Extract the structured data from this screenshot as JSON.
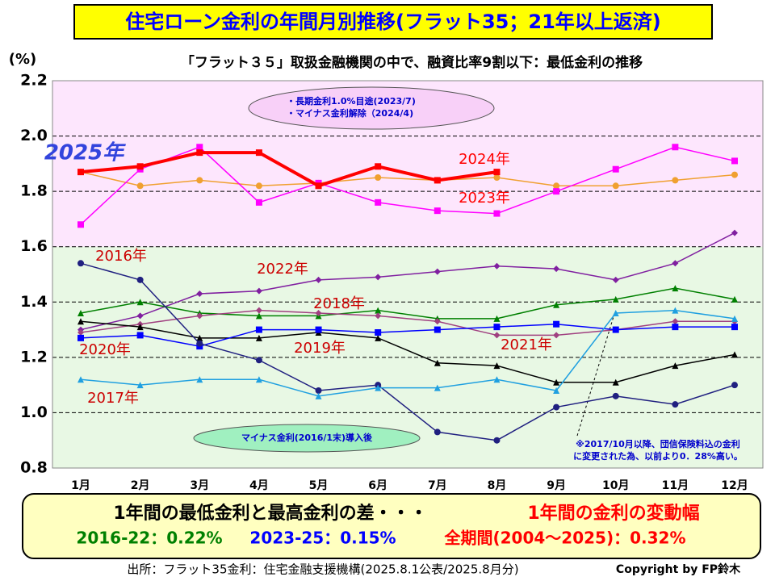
{
  "chart_data": {
    "type": "line",
    "title": "住宅ローン金利の年間月別推移(フラット35；21年以上返済)",
    "subtitle": "「フラット３５」取扱金融機関の中で、融資比率9割以下：最低金利の推移",
    "y_label": "(%)",
    "categories": [
      "1月",
      "2月",
      "3月",
      "4月",
      "5月",
      "6月",
      "7月",
      "8月",
      "9月",
      "10月",
      "11月",
      "12月"
    ],
    "ylim": [
      0.8,
      2.2
    ],
    "yticks": [
      0.8,
      {
        "value": 1,
        "label": "1.0"
      },
      1.2,
      1.4,
      1.6,
      1.8,
      {
        "value": 2,
        "label": "2.0"
      },
      2.2
    ],
    "grid": true,
    "series": [
      {
        "name": "2024年",
        "color": "#f0a030",
        "marker": "circle",
        "values": [
          1.87,
          1.82,
          1.84,
          1.82,
          1.83,
          1.85,
          1.84,
          1.85,
          1.82,
          1.82,
          1.84,
          1.86
        ]
      },
      {
        "name": "2023年",
        "color": "#ff00ff",
        "marker": "square",
        "values": [
          1.68,
          1.88,
          1.96,
          1.76,
          1.83,
          1.76,
          1.73,
          1.72,
          1.8,
          1.88,
          1.96,
          1.91
        ]
      },
      {
        "name": "2022年",
        "color": "#8020a0",
        "marker": "diamond",
        "values": [
          1.3,
          1.35,
          1.43,
          1.44,
          1.48,
          1.49,
          1.51,
          1.53,
          1.52,
          1.48,
          1.54,
          1.65
        ]
      },
      {
        "name": "2018年",
        "color": "#008000",
        "marker": "triangle",
        "values": [
          1.36,
          1.4,
          1.36,
          1.35,
          1.35,
          1.37,
          1.34,
          1.34,
          1.39,
          1.41,
          1.45,
          1.41
        ]
      },
      {
        "name": "2021年",
        "color": "#a04080",
        "marker": "diamond",
        "values": [
          1.29,
          1.32,
          1.35,
          1.37,
          1.36,
          1.35,
          1.33,
          1.28,
          1.28,
          1.3,
          1.33,
          1.33
        ]
      },
      {
        "name": "2019年",
        "color": "#000000",
        "marker": "triangle",
        "values": [
          1.33,
          1.31,
          1.27,
          1.27,
          1.29,
          1.27,
          1.18,
          1.17,
          1.11,
          1.11,
          1.17,
          1.21
        ]
      },
      {
        "name": "2020年",
        "color": "#0000ff",
        "marker": "square",
        "values": [
          1.27,
          1.28,
          1.24,
          1.3,
          1.3,
          1.29,
          1.3,
          1.31,
          1.32,
          1.3,
          1.31,
          1.31
        ]
      },
      {
        "name": "2016年",
        "color": "#202080",
        "marker": "circle",
        "values": [
          1.54,
          1.48,
          1.25,
          1.19,
          1.08,
          1.1,
          0.93,
          0.9,
          1.02,
          1.06,
          1.03,
          1.1
        ]
      },
      {
        "name": "2017年",
        "color": "#20a0e0",
        "marker": "triangle",
        "values": [
          1.12,
          1.1,
          1.12,
          1.12,
          1.06,
          1.09,
          1.09,
          1.12,
          1.08,
          1.36,
          1.37,
          1.34
        ]
      },
      {
        "name": "2025年",
        "color": "#ff0000",
        "marker": "square",
        "width": 4,
        "values": [
          1.87,
          1.89,
          1.94,
          1.94,
          1.82,
          1.89,
          1.84,
          1.87,
          null,
          null,
          null,
          null
        ]
      }
    ],
    "annotations": {
      "ellipse_top": [
        "・長期金利1.0%目途(2023/7)",
        "・マイナス金利解除（2024/4)"
      ],
      "ellipse_bottom": "マイナス金利(2016/1末)導入後",
      "note": [
        "※2017/10月以降、団信保険料込の金利",
        "に変更された為、以前より0．28%高い。"
      ]
    },
    "summary": {
      "line1a": "1年間の最低金利と最高金利の差・・・",
      "line1b": "1年間の金利の変動幅",
      "a": "2016-22：0.22%",
      "b": "2023-25：0.15%",
      "c": "全期間(2004～2025)：0.32%"
    },
    "source": "出所：フラット35金利：住宅金融支援機構(2025.8.1公表/2025.8月分)",
    "copyright": "Copyright by FP鈴木"
  }
}
